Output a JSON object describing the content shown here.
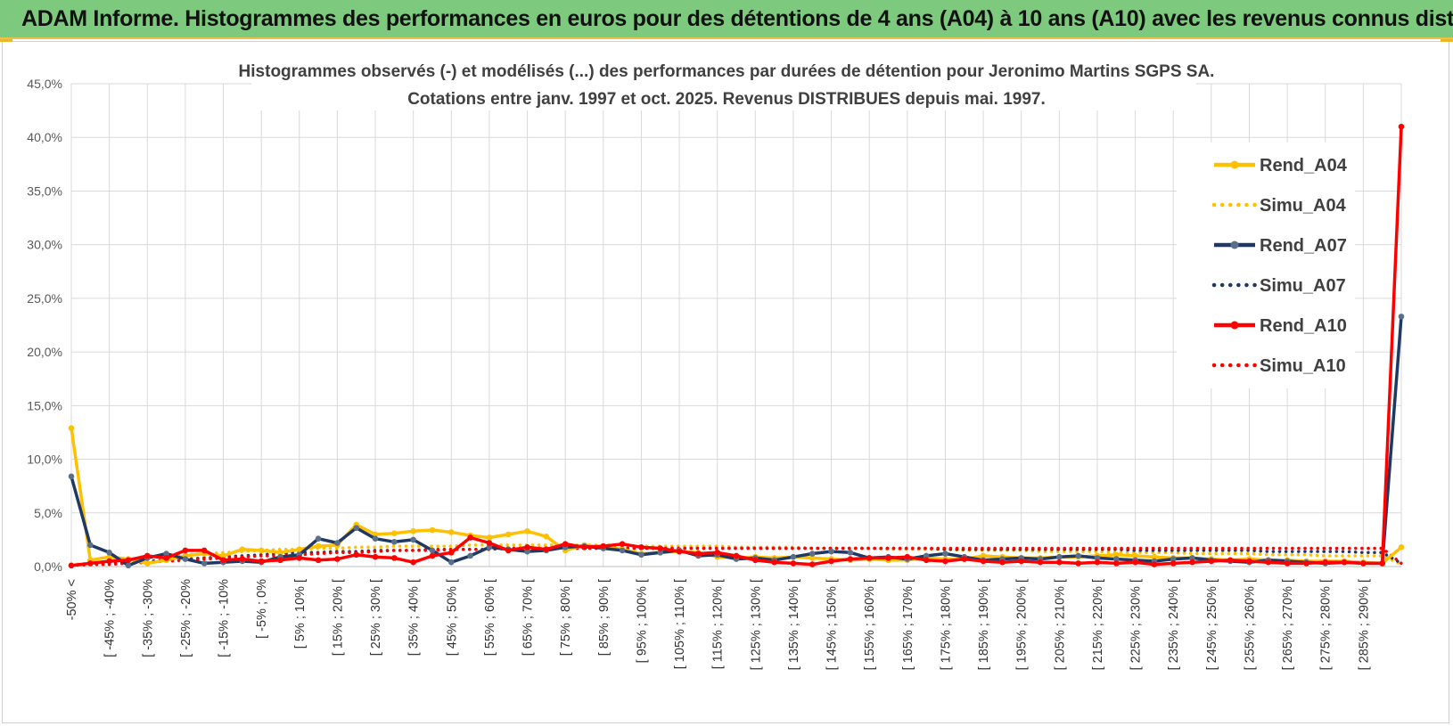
{
  "banner": {
    "title": "ADAM Informe. Histogrammes des performances en euros pour des détentions de 4 ans (A04) à 10 ans (A10) avec les revenus connus distribués"
  },
  "chart_data": {
    "type": "line",
    "title_line1": "Histogrammes observés (-) et modélisés (...) des performances par durées de détention pour Jeronimo Martins SGPS SA.",
    "title_line2": "Cotations entre janv. 1997 et oct. 2025. Revenus DISTRIBUES depuis mai. 1997.",
    "ylim": [
      0,
      45
    ],
    "yticks": [
      "0,0%",
      "5,0%",
      "10,0%",
      "15,0%",
      "20,0%",
      "25,0%",
      "30,0%",
      "35,0%",
      "40,0%",
      "45,0%"
    ],
    "xtick_labels": [
      "-50% <",
      "[ -45% ; -40%",
      "[ -35% ; -30%",
      "[ -25% ; -20%",
      "[ -15% ; -10%",
      "[ -5% ; 0%",
      "[ 5% ; 10% [",
      "[ 15% ; 20% [",
      "[ 25% ; 30% [",
      "[ 35% ; 40% [",
      "[ 45% ; 50% [",
      "[ 55% ; 60% [",
      "[ 65% ; 70% [",
      "[ 75% ; 80% [",
      "[ 85% ; 90% [",
      "[ 95% ; 100% [",
      "[ 105% ; 110% [",
      "[ 115% ; 120% [",
      "[ 125% ; 130% [",
      "[ 135% ; 140% [",
      "[ 145% ; 150% [",
      "[ 155% ; 160% [",
      "[ 165% ; 170% [",
      "[ 175% ; 180% [",
      "[ 185% ; 190% [",
      "[ 195% ; 200% [",
      "[ 205% ; 210% [",
      "[ 215% ; 220% [",
      "[ 225% ; 230% [",
      "[ 235% ; 240% [",
      "[ 245% ; 250% [",
      "[ 255% ; 260% [",
      "[ 265% ; 270% [",
      "[ 275% ; 280% [",
      "[ 285% ; 290% ["
    ],
    "n_categories": 71,
    "series": [
      {
        "name": "Rend_A04",
        "style": "solid",
        "color": "#ffc000",
        "values": [
          12.9,
          0.6,
          0.9,
          0.7,
          0.3,
          0.6,
          1.0,
          1.2,
          1.0,
          1.6,
          1.5,
          1.3,
          1.6,
          1.9,
          2.0,
          3.9,
          3.0,
          3.1,
          3.3,
          3.4,
          3.2,
          2.9,
          2.7,
          3.0,
          3.3,
          2.8,
          1.5,
          2.0,
          1.8,
          1.6,
          1.2,
          1.3,
          1.4,
          1.3,
          0.9,
          0.8,
          0.9,
          0.8,
          0.9,
          0.8,
          0.7,
          0.6,
          0.7,
          0.6,
          0.6,
          0.8,
          0.7,
          0.7,
          1.0,
          0.9,
          0.8,
          0.8,
          0.9,
          0.9,
          1.0,
          1.1,
          1.0,
          0.9,
          0.8,
          0.8,
          0.7,
          0.6,
          0.7,
          0.6,
          0.6,
          0.5,
          0.5,
          0.5,
          0.4,
          0.3,
          1.8
        ]
      },
      {
        "name": "Simu_A04",
        "style": "dotted",
        "color": "#ffc000",
        "values": [
          0.2,
          0.3,
          0.5,
          0.7,
          0.9,
          1.0,
          1.1,
          1.2,
          1.3,
          1.4,
          1.5,
          1.6,
          1.6,
          1.7,
          1.7,
          1.8,
          1.8,
          1.9,
          1.9,
          1.9,
          1.9,
          2.0,
          2.0,
          2.0,
          2.0,
          2.0,
          2.0,
          2.0,
          2.0,
          2.0,
          1.9,
          1.9,
          1.9,
          1.9,
          1.9,
          1.8,
          1.8,
          1.8,
          1.8,
          1.7,
          1.7,
          1.7,
          1.7,
          1.6,
          1.6,
          1.6,
          1.6,
          1.5,
          1.5,
          1.5,
          1.5,
          1.4,
          1.4,
          1.4,
          1.4,
          1.3,
          1.3,
          1.3,
          1.3,
          1.2,
          1.2,
          1.2,
          1.2,
          1.1,
          1.1,
          1.1,
          1.0,
          1.0,
          1.0,
          1.0,
          0.2
        ]
      },
      {
        "name": "Rend_A07",
        "style": "solid",
        "color": "#1f3864",
        "values": [
          8.4,
          2.0,
          1.3,
          0.1,
          0.8,
          1.2,
          0.7,
          0.3,
          0.4,
          0.5,
          0.4,
          0.9,
          1.1,
          2.6,
          2.2,
          3.6,
          2.6,
          2.3,
          2.5,
          1.5,
          0.4,
          1.0,
          1.8,
          1.6,
          1.4,
          1.5,
          1.8,
          1.9,
          1.7,
          1.5,
          1.1,
          1.3,
          1.5,
          1.0,
          1.1,
          0.7,
          0.8,
          0.6,
          0.9,
          1.2,
          1.4,
          1.3,
          0.8,
          0.9,
          0.7,
          1.0,
          1.2,
          0.9,
          0.6,
          0.7,
          0.8,
          0.7,
          0.9,
          1.0,
          0.8,
          0.7,
          0.6,
          0.5,
          0.7,
          0.8,
          0.6,
          0.5,
          0.4,
          0.6,
          0.5,
          0.4,
          0.3,
          0.4,
          0.3,
          0.3,
          23.3
        ]
      },
      {
        "name": "Simu_A07",
        "style": "dotted",
        "color": "#1f3864",
        "values": [
          0.1,
          0.2,
          0.3,
          0.4,
          0.5,
          0.6,
          0.7,
          0.8,
          0.9,
          1.0,
          1.1,
          1.2,
          1.3,
          1.3,
          1.4,
          1.4,
          1.5,
          1.5,
          1.5,
          1.6,
          1.6,
          1.6,
          1.6,
          1.7,
          1.7,
          1.7,
          1.7,
          1.7,
          1.7,
          1.7,
          1.7,
          1.7,
          1.7,
          1.7,
          1.7,
          1.7,
          1.7,
          1.7,
          1.7,
          1.7,
          1.7,
          1.7,
          1.7,
          1.7,
          1.7,
          1.7,
          1.6,
          1.6,
          1.6,
          1.6,
          1.6,
          1.6,
          1.6,
          1.6,
          1.6,
          1.6,
          1.5,
          1.5,
          1.5,
          1.5,
          1.5,
          1.5,
          1.5,
          1.4,
          1.4,
          1.4,
          1.4,
          1.4,
          1.3,
          1.3,
          0.3
        ]
      },
      {
        "name": "Rend_A10",
        "style": "solid",
        "color": "#ff0000",
        "values": [
          0.1,
          0.3,
          0.5,
          0.6,
          1.0,
          0.8,
          1.5,
          1.5,
          0.6,
          0.7,
          0.5,
          0.6,
          0.8,
          0.6,
          0.7,
          1.1,
          0.9,
          0.8,
          0.4,
          1.0,
          1.3,
          2.7,
          2.2,
          1.5,
          1.8,
          1.6,
          2.1,
          1.8,
          1.9,
          2.1,
          1.8,
          1.7,
          1.4,
          1.2,
          1.3,
          1.0,
          0.6,
          0.4,
          0.3,
          0.2,
          0.5,
          0.7,
          0.8,
          0.8,
          0.9,
          0.6,
          0.5,
          0.7,
          0.5,
          0.4,
          0.5,
          0.4,
          0.4,
          0.3,
          0.4,
          0.3,
          0.4,
          0.2,
          0.3,
          0.4,
          0.5,
          0.6,
          0.5,
          0.4,
          0.3,
          0.3,
          0.4,
          0.4,
          0.3,
          0.3,
          41.0
        ]
      },
      {
        "name": "Simu_A10",
        "style": "dotted",
        "color": "#ff0000",
        "values": [
          0.1,
          0.2,
          0.2,
          0.3,
          0.4,
          0.5,
          0.6,
          0.7,
          0.8,
          0.9,
          1.0,
          1.0,
          1.1,
          1.2,
          1.3,
          1.3,
          1.4,
          1.5,
          1.5,
          1.5,
          1.6,
          1.6,
          1.6,
          1.7,
          1.7,
          1.7,
          1.7,
          1.7,
          1.7,
          1.7,
          1.7,
          1.7,
          1.7,
          1.7,
          1.7,
          1.7,
          1.7,
          1.7,
          1.7,
          1.7,
          1.7,
          1.7,
          1.7,
          1.7,
          1.7,
          1.7,
          1.7,
          1.7,
          1.7,
          1.7,
          1.7,
          1.7,
          1.7,
          1.7,
          1.7,
          1.7,
          1.7,
          1.7,
          1.7,
          1.7,
          1.7,
          1.7,
          1.7,
          1.7,
          1.7,
          1.7,
          1.7,
          1.7,
          1.7,
          1.7,
          0.3
        ]
      }
    ],
    "legend_position": "top-right"
  }
}
